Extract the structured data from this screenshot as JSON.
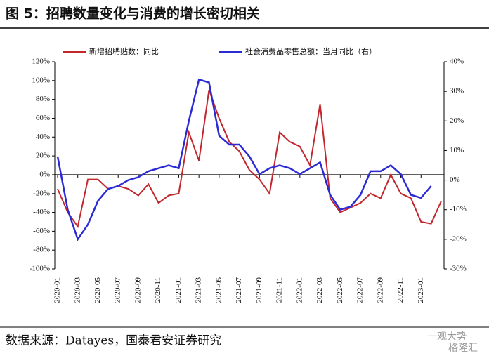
{
  "chart_data": {
    "type": "line",
    "title": "图 5：招聘数量变化与消费的增长密切相关",
    "source": "数据来源：Datayes，国泰君安证券研究",
    "watermark": [
      "一观大势",
      "格隆汇"
    ],
    "categories": [
      "2020-01",
      null,
      "2020-03",
      null,
      "2020-05",
      null,
      "2020-07",
      null,
      "2020-09",
      null,
      "2020-11",
      null,
      "2021-01",
      null,
      "2021-03",
      null,
      "2021-05",
      null,
      "2021-07",
      null,
      "2021-09",
      null,
      "2021-11",
      null,
      "2022-01",
      null,
      "2022-03",
      null,
      "2022-05",
      null,
      "2022-07",
      null,
      "2022-09",
      null,
      "2022-11",
      null,
      "2023-01",
      null,
      null
    ],
    "series": [
      {
        "name": "新增招聘贴数：同比",
        "color": "#c1272d",
        "values": [
          -15,
          -40,
          -55,
          -5,
          -5,
          -15,
          -12,
          -15,
          -22,
          -10,
          -30,
          -22,
          -20,
          45,
          15,
          90,
          60,
          35,
          25,
          5,
          -5,
          -20,
          45,
          35,
          30,
          10,
          75,
          -25,
          -40,
          -35,
          -30,
          -20,
          -25,
          0,
          -20,
          -25,
          -50,
          -52,
          -28
        ]
      },
      {
        "name": "社会消费品零售总额：当月同比（右）",
        "color": "#2b2bd6",
        "axis": "y2",
        "values": [
          8,
          -10,
          -20,
          -15,
          -7,
          -3,
          -2,
          0,
          1,
          3,
          4,
          5,
          4,
          20,
          34,
          33,
          15,
          12,
          12,
          8,
          2,
          4,
          5,
          4,
          2,
          4,
          6,
          -5,
          -10,
          -9,
          -5,
          3,
          3,
          5,
          2,
          -5,
          -6,
          -2,
          null
        ]
      }
    ],
    "ylim": [
      -100,
      120
    ],
    "yticks": [
      {
        "value": -100,
        "label": "-100%"
      },
      {
        "value": -80,
        "label": "-80%"
      },
      {
        "value": -60,
        "label": "-60%"
      },
      {
        "value": -40,
        "label": "-40%"
      },
      {
        "value": -20,
        "label": "-20%"
      },
      {
        "value": 0,
        "label": "0%"
      },
      {
        "value": 20,
        "label": "20%"
      },
      {
        "value": 40,
        "label": "40%"
      },
      {
        "value": 60,
        "label": "60%"
      },
      {
        "value": 80,
        "label": "80%"
      },
      {
        "value": 100,
        "label": "100%"
      },
      {
        "value": 120,
        "label": "120%"
      }
    ],
    "y2lim": [
      -30,
      40
    ],
    "y2ticks": [
      {
        "value": -30,
        "label": "-30%"
      },
      {
        "value": -20,
        "label": "-20%"
      },
      {
        "value": -10,
        "label": "-10%"
      },
      {
        "value": 0,
        "label": "0%"
      },
      {
        "value": 10,
        "label": "10%"
      },
      {
        "value": 20,
        "label": "20%"
      },
      {
        "value": 30,
        "label": "30%"
      },
      {
        "value": 40,
        "label": "40%"
      }
    ],
    "grid": false,
    "legend": "top"
  }
}
